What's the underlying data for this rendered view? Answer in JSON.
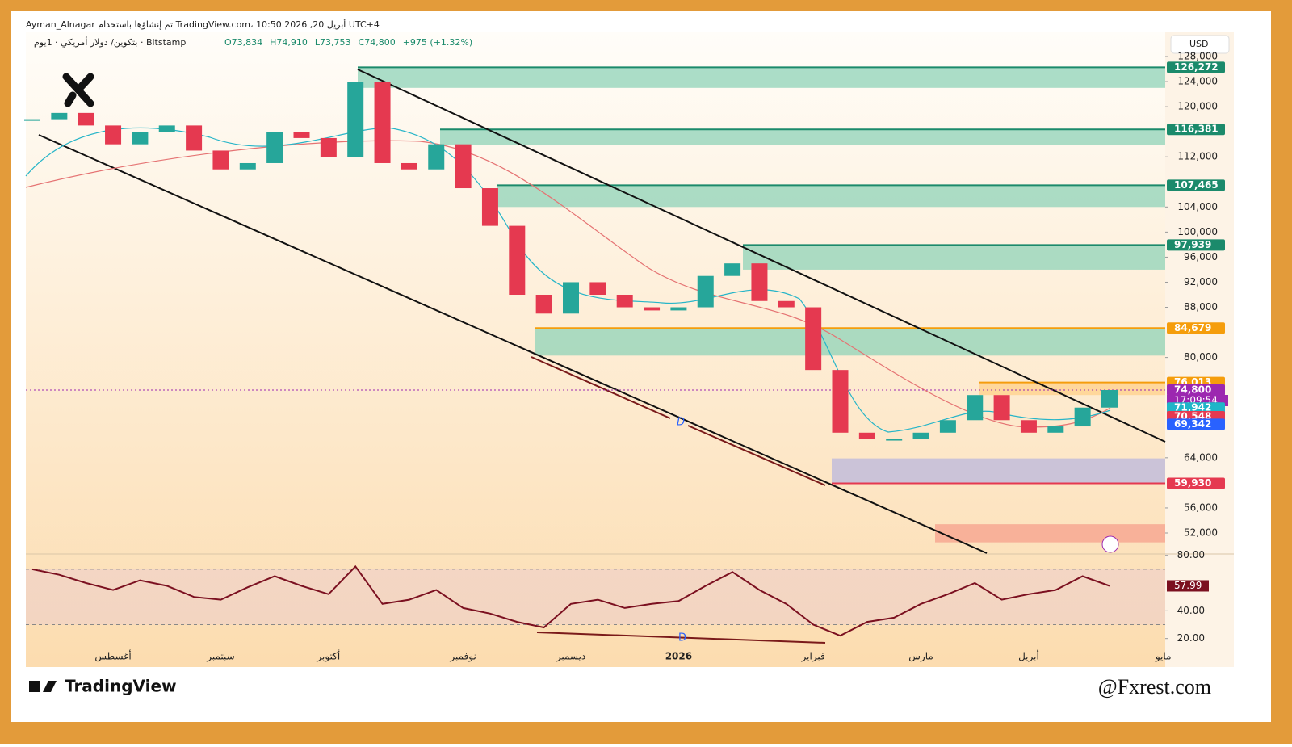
{
  "header": {
    "line1": "Ayman_Alnagar تم إنشاؤها باستخدام TradingView.com، 10:50 2026 ,20 أبريل UTC+4",
    "symbol": "بتكوين/ دولار أمريكي · 1يوم · Bitstamp",
    "ohlc": [
      "O73,834",
      "H74,910",
      "L73,753",
      "C74,800",
      "+975 (+1.32%)"
    ],
    "currency": "USD"
  },
  "footer": {
    "brand": "TradingView",
    "watermark": "@Fxrest.com"
  },
  "chart_data": [
    {
      "type": "candlestick",
      "categories": [
        null,
        null,
        null,
        "أغسطس",
        null,
        null,
        null,
        "سبتمبر",
        null,
        null,
        null,
        "أكتوبر",
        null,
        null,
        null,
        null,
        "نوفمبر",
        null,
        null,
        null,
        "ديسمبر",
        null,
        null,
        null,
        "2026",
        null,
        null,
        null,
        null,
        "فبراير",
        null,
        null,
        null,
        "مارس",
        null,
        null,
        null,
        "أبريل",
        null,
        null,
        null,
        null,
        "مايو"
      ],
      "series": [
        {
          "name": "BTCUSD",
          "up_color": "#26a69a",
          "down_color": "#e53950",
          "values": [
            118000,
            119000,
            117000,
            114000,
            116000,
            117000,
            113000,
            110000,
            111000,
            116000,
            115000,
            112000,
            124000,
            111000,
            110000,
            114000,
            107000,
            101000,
            90000,
            87000,
            92000,
            90000,
            88000,
            87500,
            88000,
            93000,
            95000,
            89000,
            88000,
            78000,
            68000,
            67000,
            67000,
            68000,
            70000,
            74000,
            70000,
            68000,
            69000,
            72000,
            74800,
            null,
            null
          ]
        }
      ],
      "ylim": [
        48780,
        129030
      ],
      "yticks": [
        {
          "value": 128000,
          "label": "128,000"
        },
        {
          "value": 124000,
          "label": "124,000"
        },
        {
          "value": 120000,
          "label": "120,000"
        },
        {
          "value": 112000,
          "label": "112,000"
        },
        {
          "value": 104000,
          "label": "104,000"
        },
        {
          "value": 100000,
          "label": "100,000"
        },
        {
          "value": 96000,
          "label": "96,000"
        },
        {
          "value": 92000,
          "label": "92,000"
        },
        {
          "value": 88000,
          "label": "88,000"
        },
        {
          "value": 80000,
          "label": "80,000"
        },
        {
          "value": 64000,
          "label": "64,000"
        },
        {
          "value": 56000,
          "label": "56,000"
        },
        {
          "value": 52000,
          "label": "52,000"
        }
      ],
      "zones": [
        {
          "top": 126272,
          "bottom": 123000,
          "color": "#8fd3b8"
        },
        {
          "top": 116381,
          "bottom": 113900,
          "color": "#8fd3b8"
        },
        {
          "top": 107465,
          "bottom": 104000,
          "color": "#8fd3b8"
        },
        {
          "top": 97939,
          "bottom": 94000,
          "color": "#8fd3b8"
        },
        {
          "top": 84679,
          "bottom": 80300,
          "color": "#8fd3b8"
        },
        {
          "top": 76013,
          "bottom": 74000,
          "color": "#ffd08a"
        },
        {
          "top": 63900,
          "bottom": 59930,
          "color": "#b9b7dd"
        },
        {
          "top": 53400,
          "bottom": 50500,
          "color": "#f6a08c"
        }
      ],
      "price_labels": [
        {
          "value": 126272,
          "label": "126,272",
          "color": "#1b8a6b"
        },
        {
          "value": 116381,
          "label": "116,381",
          "color": "#1b8a6b"
        },
        {
          "value": 107465,
          "label": "107,465",
          "color": "#1b8a6b"
        },
        {
          "value": 97939,
          "label": "97,939",
          "color": "#1b8a6b"
        },
        {
          "value": 84679,
          "label": "84,679",
          "color": "#f59d0c"
        },
        {
          "value": 76013,
          "label": "76,013",
          "color": "#f59d0c"
        },
        {
          "value": 74800,
          "label": "74,800",
          "color": "#9c27b0"
        },
        {
          "value": 71942,
          "label": "71,942",
          "color": "#1fb5c8"
        },
        {
          "value": 70548,
          "label": "70,548",
          "color": "#e53950"
        },
        {
          "value": 69342,
          "label": "69,342",
          "color": "#2962ff"
        },
        {
          "value": 59930,
          "label": "59,930",
          "color": "#e53950"
        }
      ],
      "countdown": "17:09:54",
      "annotation": "D"
    },
    {
      "type": "line",
      "series": [
        {
          "name": "RSI",
          "color": "#7b1020",
          "values": [
            70,
            66,
            60,
            55,
            62,
            58,
            50,
            48,
            57,
            65,
            58,
            52,
            72,
            45,
            48,
            55,
            42,
            38,
            32,
            28,
            45,
            48,
            42,
            45,
            47,
            58,
            68,
            55,
            45,
            30,
            22,
            32,
            35,
            45,
            52,
            60,
            48,
            52,
            55,
            65,
            57.99,
            null,
            null
          ]
        }
      ],
      "ylim": [
        0,
        81
      ],
      "yticks": [
        {
          "value": 80,
          "label": "80.00"
        },
        {
          "value": 40,
          "label": "40.00"
        },
        {
          "value": 20,
          "label": "20.00"
        }
      ],
      "band": [
        30,
        70
      ],
      "annotation": "D"
    }
  ]
}
